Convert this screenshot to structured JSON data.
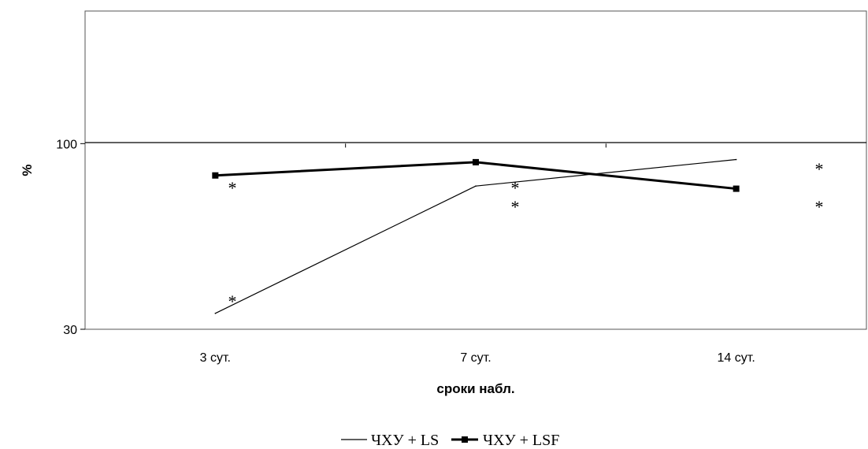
{
  "chart_data": {
    "type": "line",
    "title": "",
    "xlabel": "сроки набл.",
    "ylabel": "%",
    "categories": [
      "3 сут.",
      "7 сут.",
      "14 сут."
    ],
    "ylim": [
      30,
      150
    ],
    "yticks": [
      {
        "value": 30,
        "label": "30"
      },
      {
        "value": 100,
        "label": "100"
      }
    ],
    "series": [
      {
        "name": "ЧХУ + LS",
        "values": [
          36,
          84,
          94
        ],
        "color": "#000000",
        "marker": "none",
        "significance": [
          "*",
          "**",
          "*"
        ]
      },
      {
        "name": "ЧХУ + LSF",
        "values": [
          88,
          93,
          83
        ],
        "color": "#000000",
        "marker": "square",
        "significance": [
          "*",
          "",
          "*"
        ]
      }
    ],
    "legend": "bottom",
    "grid": false
  }
}
